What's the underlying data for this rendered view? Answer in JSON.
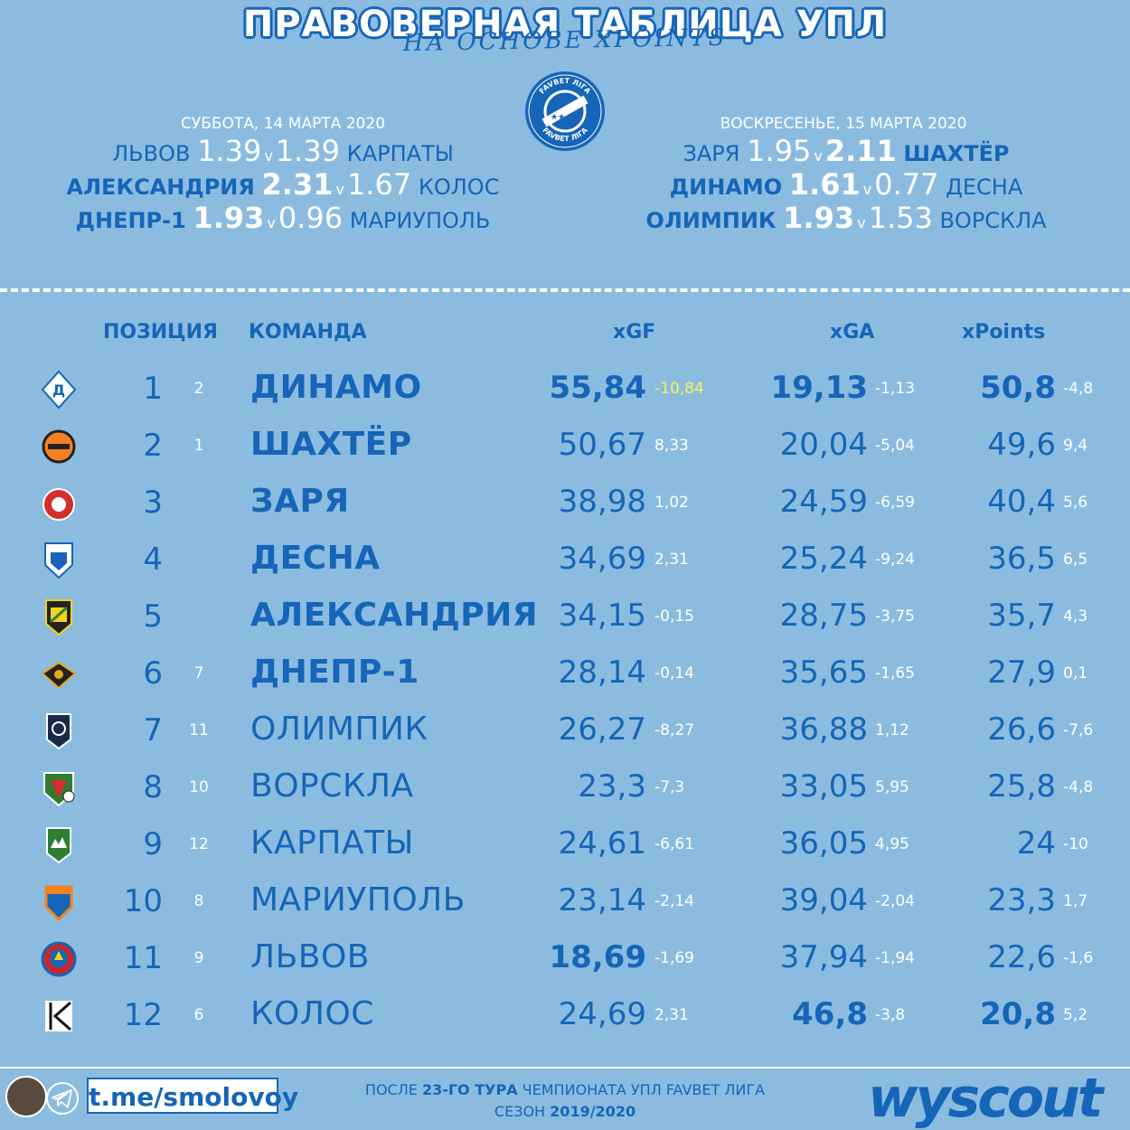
{
  "header": {
    "title": "ПРАВОВЕРНАЯ ТАБЛИЦА УПЛ",
    "subtitle": "НА ОСНОВЕ XPOINTS"
  },
  "logo_text": "FAVBET ЛІГА",
  "saturday": {
    "date": "СУББОТА, 14 МАРТА 2020",
    "matches": [
      {
        "home": "ЛЬВОВ",
        "home_x": "1.39",
        "away_x": "1.39",
        "away": "КАРПАТЫ"
      },
      {
        "home": "АЛЕКСАНДРИЯ",
        "home_x": "2.31",
        "away_x": "1.67",
        "away": "КОЛОС"
      },
      {
        "home": "ДНЕПР-1",
        "home_x": "1.93",
        "away_x": "0.96",
        "away": "МАРИУПОЛЬ"
      }
    ]
  },
  "sunday": {
    "date": "ВОСКРЕСЕНЬЕ, 15 МАРТА 2020",
    "matches": [
      {
        "home": "ЗАРЯ",
        "home_x": "1.95",
        "away_x": "2.11",
        "away": "ШАХТЁР"
      },
      {
        "home": "ДИНАМО",
        "home_x": "1.61",
        "away_x": "0.77",
        "away": "ДЕСНА"
      },
      {
        "home": "ОЛИМПИК",
        "home_x": "1.93",
        "away_x": "1.53",
        "away": "ВОРСКЛА"
      }
    ]
  },
  "vs": "v",
  "columns": {
    "position": "ПОЗИЦИЯ",
    "team": "КОМАНДА",
    "xgf": "xGF",
    "xga": "xGA",
    "xpoints": "xPoints"
  },
  "rows": [
    {
      "pos": "1",
      "prev": "2",
      "team": "ДИНАМО",
      "xgf": "55,84",
      "xgf_d": "-10,84",
      "xga": "19,13",
      "xga_d": "-1,13",
      "xp": "50,8",
      "xp_d": "-4,8"
    },
    {
      "pos": "2",
      "prev": "1",
      "team": "ШАХТЁР",
      "xgf": "50,67",
      "xgf_d": "8,33",
      "xga": "20,04",
      "xga_d": "-5,04",
      "xp": "49,6",
      "xp_d": "9,4"
    },
    {
      "pos": "3",
      "prev": "",
      "team": "ЗАРЯ",
      "xgf": "38,98",
      "xgf_d": "1,02",
      "xga": "24,59",
      "xga_d": "-6,59",
      "xp": "40,4",
      "xp_d": "5,6"
    },
    {
      "pos": "4",
      "prev": "",
      "team": "ДЕСНА",
      "xgf": "34,69",
      "xgf_d": "2,31",
      "xga": "25,24",
      "xga_d": "-9,24",
      "xp": "36,5",
      "xp_d": "6,5"
    },
    {
      "pos": "5",
      "prev": "",
      "team": "АЛЕКСАНДРИЯ",
      "xgf": "34,15",
      "xgf_d": "-0,15",
      "xga": "28,75",
      "xga_d": "-3,75",
      "xp": "35,7",
      "xp_d": "4,3"
    },
    {
      "pos": "6",
      "prev": "7",
      "team": "ДНЕПР-1",
      "xgf": "28,14",
      "xgf_d": "-0,14",
      "xga": "35,65",
      "xga_d": "-1,65",
      "xp": "27,9",
      "xp_d": "0,1"
    },
    {
      "pos": "7",
      "prev": "11",
      "team": "ОЛИМПИК",
      "xgf": "26,27",
      "xgf_d": "-8,27",
      "xga": "36,88",
      "xga_d": "1,12",
      "xp": "26,6",
      "xp_d": "-7,6"
    },
    {
      "pos": "8",
      "prev": "10",
      "team": "ВОРСКЛА",
      "xgf": "23,3",
      "xgf_d": "-7,3",
      "xga": "33,05",
      "xga_d": "5,95",
      "xp": "25,8",
      "xp_d": "-4,8"
    },
    {
      "pos": "9",
      "prev": "12",
      "team": "КАРПАТЫ",
      "xgf": "24,61",
      "xgf_d": "-6,61",
      "xga": "36,05",
      "xga_d": "4,95",
      "xp": "24",
      "xp_d": "-10"
    },
    {
      "pos": "10",
      "prev": "8",
      "team": "МАРИУПОЛЬ",
      "xgf": "23,14",
      "xgf_d": "-2,14",
      "xga": "39,04",
      "xga_d": "-2,04",
      "xp": "23,3",
      "xp_d": "1,7"
    },
    {
      "pos": "11",
      "prev": "9",
      "team": "ЛЬВОВ",
      "xgf": "18,69",
      "xgf_d": "-1,69",
      "xga": "37,94",
      "xga_d": "-1,94",
      "xp": "22,6",
      "xp_d": "-1,6"
    },
    {
      "pos": "12",
      "prev": "6",
      "team": "КОЛОС",
      "xgf": "24,69",
      "xgf_d": "2,31",
      "xga": "46,8",
      "xga_d": "-3,8",
      "xp": "20,8",
      "xp_d": "5,2"
    }
  ],
  "footer": {
    "telegram": "t.me/smolovoy",
    "line1_pre": "ПОСЛЕ ",
    "line1_bold": "23-ГО ТУРА",
    "line1_post": " ЧЕМПИОНАТА УПЛ FAVBET ЛИГА",
    "line2_pre": "СЕЗОН ",
    "line2_bold": "2019/2020",
    "brand": "wyscout"
  },
  "colors": {
    "background": "#8bbce0",
    "blue": "#1565b8",
    "white": "#ffffff",
    "highlight": "#f4f35a"
  }
}
